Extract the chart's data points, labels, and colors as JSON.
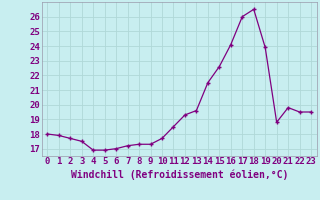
{
  "x": [
    0,
    1,
    2,
    3,
    4,
    5,
    6,
    7,
    8,
    9,
    10,
    11,
    12,
    13,
    14,
    15,
    16,
    17,
    18,
    19,
    20,
    21,
    22,
    23
  ],
  "y": [
    18.0,
    17.9,
    17.7,
    17.5,
    16.9,
    16.9,
    17.0,
    17.2,
    17.3,
    17.3,
    17.7,
    18.5,
    19.3,
    19.6,
    21.5,
    22.6,
    24.1,
    26.0,
    26.5,
    23.9,
    18.8,
    19.8,
    19.5,
    19.5
  ],
  "line_color": "#800080",
  "marker": "+",
  "bg_color": "#c8eef0",
  "grid_color": "#aadddd",
  "xlabel": "Windchill (Refroidissement éolien,°C)",
  "xlabel_color": "#800080",
  "ylim": [
    16.5,
    27.0
  ],
  "xlim": [
    -0.5,
    23.5
  ],
  "yticks": [
    17,
    18,
    19,
    20,
    21,
    22,
    23,
    24,
    25,
    26
  ],
  "xticks": [
    0,
    1,
    2,
    3,
    4,
    5,
    6,
    7,
    8,
    9,
    10,
    11,
    12,
    13,
    14,
    15,
    16,
    17,
    18,
    19,
    20,
    21,
    22,
    23
  ],
  "tick_color": "#800080",
  "font_size_label": 7,
  "font_size_tick": 6.5
}
